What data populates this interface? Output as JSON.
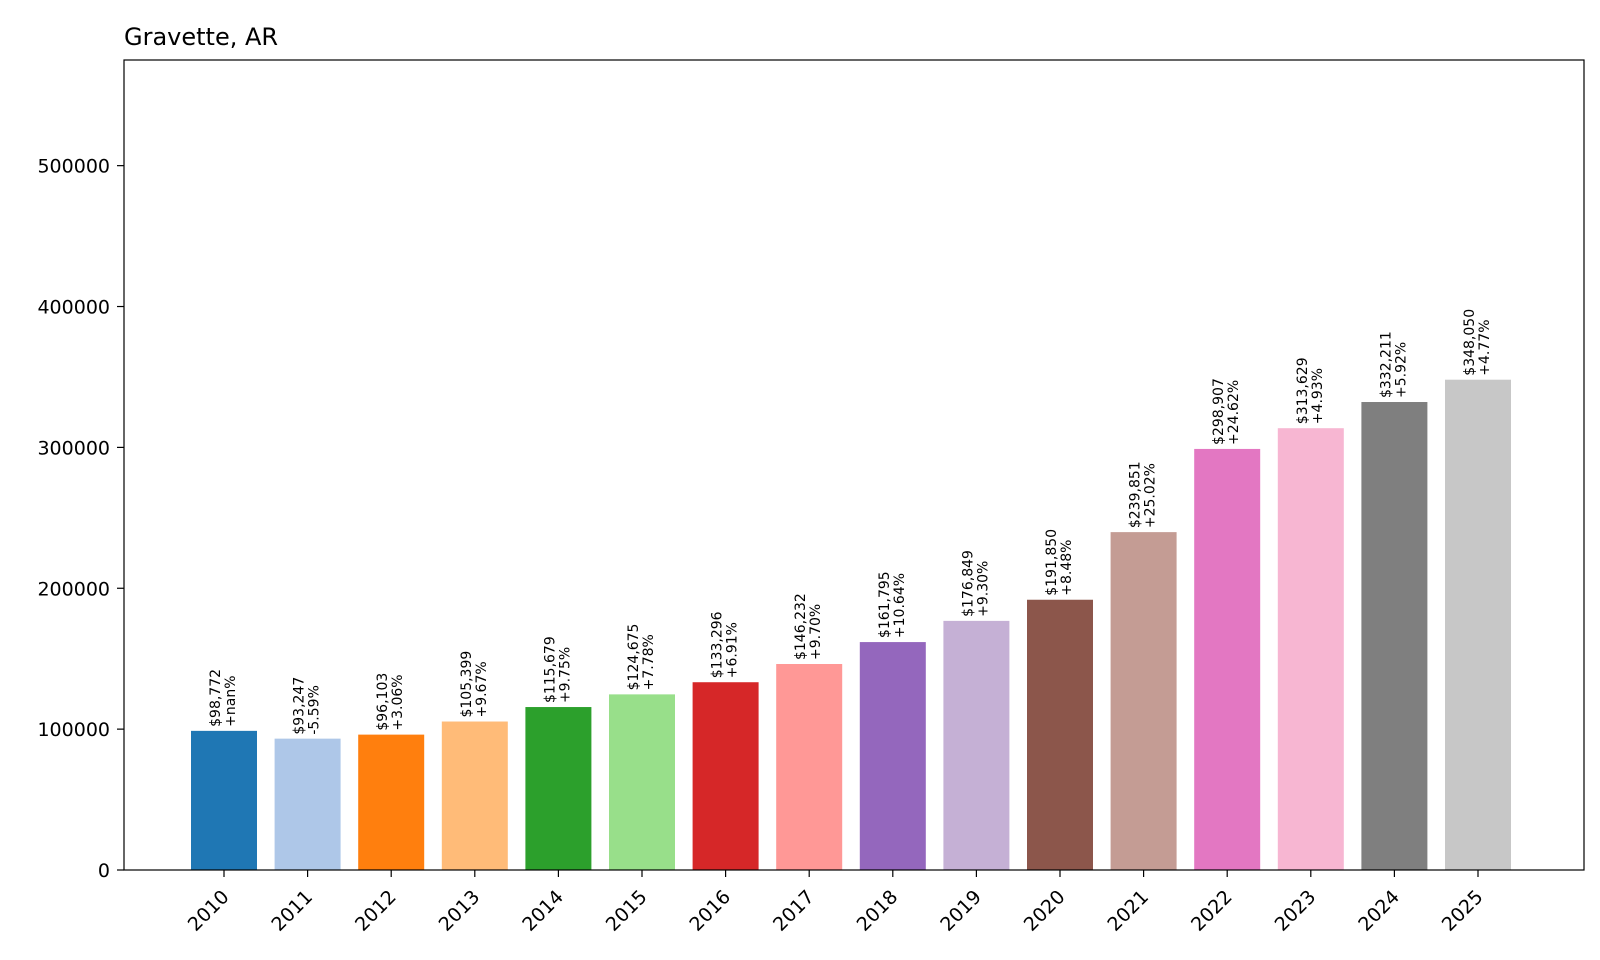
{
  "chart_data": {
    "type": "bar",
    "title": "Gravette, AR",
    "xlabel": "",
    "ylabel": "",
    "ylim": [
      0,
      575000
    ],
    "yticks": [
      0,
      100000,
      200000,
      300000,
      400000,
      500000
    ],
    "ytick_labels": [
      "0",
      "100000",
      "200000",
      "300000",
      "400000",
      "500000"
    ],
    "categories": [
      "2010",
      "2011",
      "2012",
      "2013",
      "2014",
      "2015",
      "2016",
      "2017",
      "2018",
      "2019",
      "2020",
      "2021",
      "2022",
      "2023",
      "2024",
      "2025"
    ],
    "values": [
      98772,
      93247,
      96103,
      105399,
      115679,
      124675,
      133296,
      146232,
      161795,
      176849,
      191850,
      239851,
      298907,
      313629,
      332211,
      348050
    ],
    "value_labels": [
      "$98,772",
      "$93,247",
      "$96,103",
      "$105,399",
      "$115,679",
      "$124,675",
      "$133,296",
      "$146,232",
      "$161,795",
      "$176,849",
      "$191,850",
      "$239,851",
      "$298,907",
      "$313,629",
      "$332,211",
      "$348,050"
    ],
    "change_labels": [
      "+nan%",
      "-5.59%",
      "+3.06%",
      "+9.67%",
      "+9.75%",
      "+7.78%",
      "+6.91%",
      "+9.70%",
      "+10.64%",
      "+9.30%",
      "+8.48%",
      "+25.02%",
      "+24.62%",
      "+4.93%",
      "+5.92%",
      "+4.77%"
    ],
    "colors": [
      "#1f77b4",
      "#aec7e8",
      "#ff7f0e",
      "#ffbb78",
      "#2ca02c",
      "#98df8a",
      "#d62728",
      "#ff9896",
      "#9467bd",
      "#c5b0d5",
      "#8c564b",
      "#c49c94",
      "#e377c2",
      "#f7b6d2",
      "#7f7f7f",
      "#c7c7c7"
    ],
    "grid": false,
    "legend": "none"
  }
}
